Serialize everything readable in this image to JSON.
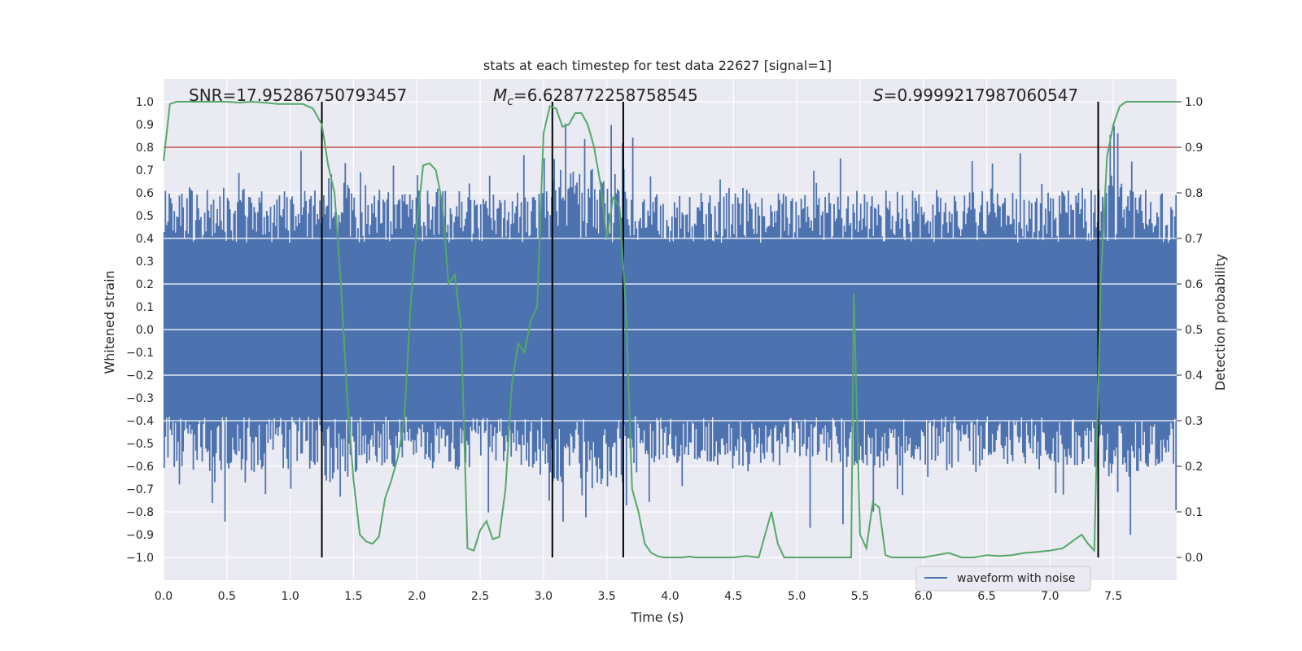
{
  "chart_data": {
    "type": "line",
    "title": "stats at each timestep for test data 22627 [signal=1]",
    "xlabel": "Time (s)",
    "ylabel": "Whitened strain",
    "y2label": "Detection probability",
    "xlim": [
      0.0,
      8.0
    ],
    "ylim": [
      -1.1,
      1.1
    ],
    "y2lim": [
      -0.05,
      1.05
    ],
    "x_ticks": [
      0.0,
      0.5,
      1.0,
      1.5,
      2.0,
      2.5,
      3.0,
      3.5,
      4.0,
      4.5,
      5.0,
      5.5,
      6.0,
      6.5,
      7.0,
      7.5
    ],
    "x_tick_labels": [
      "0.0",
      "0.5",
      "1.0",
      "1.5",
      "2.0",
      "2.5",
      "3.0",
      "3.5",
      "4.0",
      "4.5",
      "5.0",
      "5.5",
      "6.0",
      "6.5",
      "7.0",
      "7.5"
    ],
    "y_ticks": [
      -1.0,
      -0.9,
      -0.8,
      -0.7,
      -0.6,
      -0.5,
      -0.4,
      -0.3,
      -0.2,
      -0.1,
      0.0,
      0.1,
      0.2,
      0.3,
      0.4,
      0.5,
      0.6,
      0.7,
      0.8,
      0.9,
      1.0
    ],
    "y_tick_labels": [
      "−1.0",
      "−0.9",
      "−0.8",
      "−0.7",
      "−0.6",
      "−0.5",
      "−0.4",
      "−0.3",
      "−0.2",
      "−0.1",
      "0.0",
      "0.1",
      "0.2",
      "0.3",
      "0.4",
      "0.5",
      "0.6",
      "0.7",
      "0.8",
      "0.9",
      "1.0"
    ],
    "y2_ticks": [
      0.0,
      0.1,
      0.2,
      0.3,
      0.4,
      0.5,
      0.6,
      0.7,
      0.8,
      0.9,
      1.0
    ],
    "y2_tick_labels": [
      "0.0",
      "0.1",
      "0.2",
      "0.3",
      "0.4",
      "0.5",
      "0.6",
      "0.7",
      "0.8",
      "0.9",
      "1.0"
    ],
    "grid": true,
    "background": "#eaeaf2",
    "annotations": {
      "snr": "SNR=17.95286750793457",
      "mc_symbol": "M",
      "mc_sub": "c",
      "mc_value": "=6.628772258758545",
      "s_symbol": "S",
      "s_value": "=0.9999217987060547"
    },
    "threshold": {
      "value": 0.9,
      "axis": "right",
      "color": "#c44e52"
    },
    "vertical_lines": [
      1.25,
      3.07,
      3.63,
      7.38
    ],
    "vertical_line_color": "#000000",
    "noise_series": {
      "name": "waveform with noise",
      "color": "#4c72b0",
      "count": 800,
      "envelope": [
        [
          0.0,
          0.6
        ],
        [
          0.5,
          0.62
        ],
        [
          1.0,
          0.6
        ],
        [
          1.25,
          0.62
        ],
        [
          1.3,
          0.68
        ],
        [
          1.5,
          0.62
        ],
        [
          2.0,
          0.6
        ],
        [
          2.25,
          0.62
        ],
        [
          2.5,
          0.58
        ],
        [
          3.0,
          0.6
        ],
        [
          3.1,
          0.68
        ],
        [
          3.3,
          0.72
        ],
        [
          3.5,
          0.7
        ],
        [
          3.63,
          0.68
        ],
        [
          3.7,
          0.6
        ],
        [
          4.0,
          0.58
        ],
        [
          4.5,
          0.62
        ],
        [
          5.0,
          0.58
        ],
        [
          5.5,
          0.6
        ],
        [
          6.0,
          0.6
        ],
        [
          6.5,
          0.62
        ],
        [
          7.0,
          0.6
        ],
        [
          7.4,
          0.62
        ],
        [
          7.5,
          0.68
        ],
        [
          7.7,
          0.62
        ],
        [
          8.0,
          0.58
        ]
      ]
    },
    "series": [
      {
        "name": "detection probability",
        "axis": "right",
        "color": "#55a868",
        "x": [
          0.0,
          0.05,
          0.1,
          0.2,
          0.3,
          0.4,
          0.5,
          0.6,
          0.7,
          0.8,
          0.9,
          1.0,
          1.1,
          1.18,
          1.25,
          1.3,
          1.35,
          1.4,
          1.45,
          1.5,
          1.55,
          1.6,
          1.65,
          1.7,
          1.75,
          1.8,
          1.85,
          1.9,
          1.95,
          2.0,
          2.05,
          2.1,
          2.15,
          2.2,
          2.25,
          2.3,
          2.35,
          2.4,
          2.45,
          2.5,
          2.55,
          2.6,
          2.65,
          2.7,
          2.75,
          2.8,
          2.85,
          2.9,
          2.95,
          3.0,
          3.05,
          3.1,
          3.15,
          3.2,
          3.25,
          3.3,
          3.35,
          3.4,
          3.45,
          3.5,
          3.55,
          3.6,
          3.65,
          3.7,
          3.75,
          3.8,
          3.85,
          3.9,
          3.95,
          4.0,
          4.05,
          4.1,
          4.15,
          4.2,
          4.3,
          4.4,
          4.5,
          4.6,
          4.7,
          4.75,
          4.8,
          4.85,
          4.9,
          4.95,
          5.0,
          5.1,
          5.2,
          5.3,
          5.35,
          5.4,
          5.43,
          5.45,
          5.5,
          5.55,
          5.6,
          5.65,
          5.7,
          5.75,
          5.8,
          5.9,
          6.0,
          6.1,
          6.2,
          6.3,
          6.4,
          6.5,
          6.6,
          6.7,
          6.8,
          6.9,
          7.0,
          7.1,
          7.15,
          7.2,
          7.25,
          7.3,
          7.35,
          7.4,
          7.45,
          7.5,
          7.55,
          7.6,
          7.7,
          7.8,
          7.9,
          8.0
        ],
        "values": [
          0.87,
          0.995,
          1.0,
          1.0,
          1.0,
          1.0,
          1.0,
          0.998,
          1.0,
          0.998,
          0.995,
          0.995,
          0.995,
          0.985,
          0.95,
          0.86,
          0.8,
          0.6,
          0.35,
          0.17,
          0.05,
          0.035,
          0.03,
          0.045,
          0.13,
          0.17,
          0.22,
          0.3,
          0.55,
          0.73,
          0.86,
          0.865,
          0.85,
          0.78,
          0.6,
          0.62,
          0.5,
          0.02,
          0.015,
          0.06,
          0.08,
          0.04,
          0.045,
          0.15,
          0.38,
          0.47,
          0.45,
          0.52,
          0.55,
          0.93,
          0.99,
          0.985,
          0.945,
          0.95,
          0.975,
          0.975,
          0.95,
          0.9,
          0.82,
          0.7,
          0.79,
          0.77,
          0.55,
          0.15,
          0.1,
          0.03,
          0.01,
          0.003,
          0.0,
          0.0,
          0.0,
          0.0,
          0.002,
          0.0,
          0.0,
          0.0,
          0.0,
          0.003,
          0.0,
          0.05,
          0.1,
          0.03,
          0.0,
          0.0,
          0.0,
          0.0,
          0.0,
          0.0,
          0.0,
          0.0,
          0.0,
          0.58,
          0.05,
          0.02,
          0.12,
          0.11,
          0.005,
          0.0,
          0.0,
          0.0,
          0.0,
          0.005,
          0.01,
          0.0,
          0.0,
          0.005,
          0.003,
          0.005,
          0.01,
          0.012,
          0.015,
          0.02,
          0.03,
          0.04,
          0.05,
          0.03,
          0.015,
          0.6,
          0.88,
          0.95,
          0.99,
          1.0,
          1.0,
          1.0,
          1.0,
          1.0
        ]
      }
    ],
    "legend": {
      "placement": "lower-right",
      "entries": [
        "waveform with noise"
      ]
    }
  }
}
